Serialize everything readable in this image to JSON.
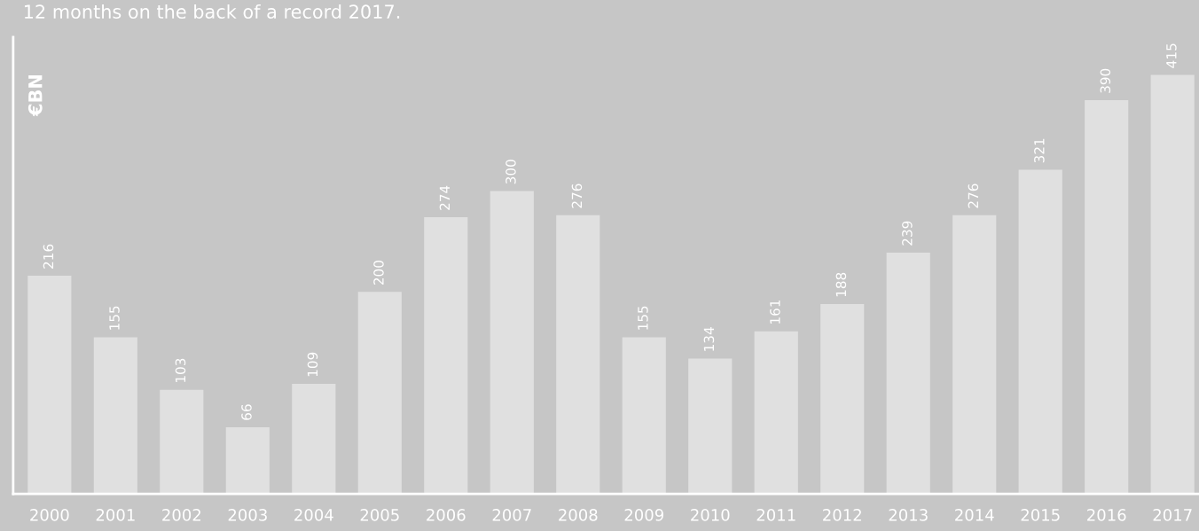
{
  "chart_data": {
    "type": "bar",
    "subtitle": "12 months on the back of a record 2017.",
    "ylabel": "€BN",
    "categories": [
      "2000",
      "2001",
      "2002",
      "2003",
      "2004",
      "2005",
      "2006",
      "2007",
      "2008",
      "2009",
      "2010",
      "2011",
      "2012",
      "2013",
      "2014",
      "2015",
      "2016",
      "2017"
    ],
    "values": [
      216,
      155,
      103,
      66,
      109,
      200,
      274,
      300,
      276,
      155,
      134,
      161,
      188,
      239,
      276,
      321,
      390,
      415
    ],
    "color": "#e0e0e0",
    "data_labels": true,
    "grid": false,
    "legend": false,
    "tick_labels": "x"
  }
}
